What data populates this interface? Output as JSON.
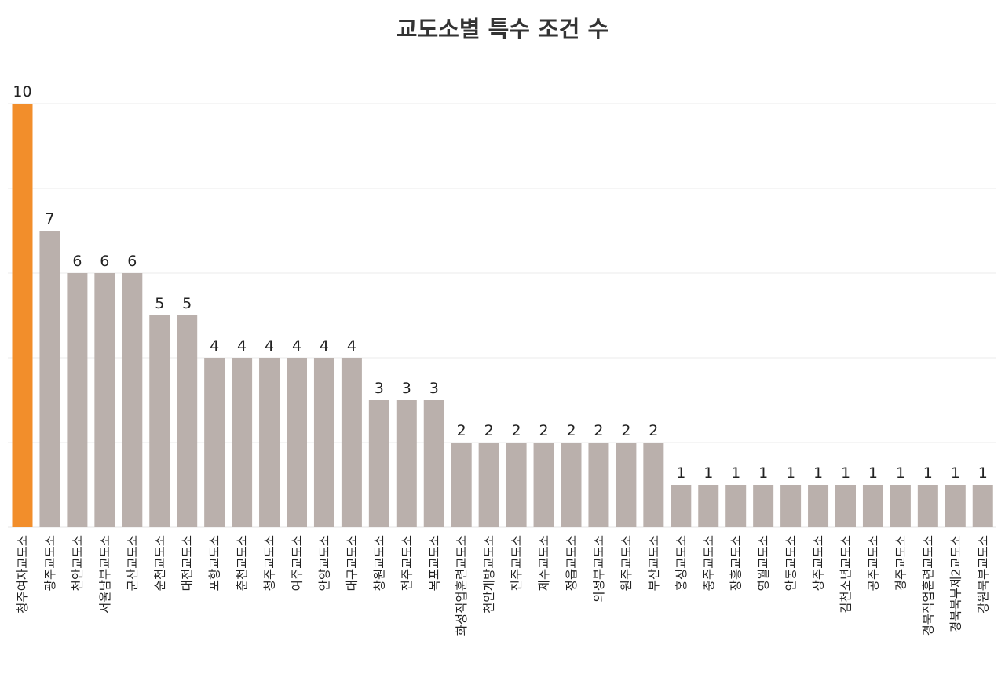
{
  "chart_data": {
    "type": "bar",
    "title": "교도소별 특수 조건 수",
    "xlabel": "",
    "ylabel": "",
    "ylim": [
      0,
      10
    ],
    "grid": true,
    "highlight_color": "#F28E2B",
    "bar_color": "#BAB0AC",
    "grid_color": "#EBEBEB",
    "categories": [
      "청주여자교도소",
      "광주교도소",
      "천안교도소",
      "서울남부교도소",
      "군산교도소",
      "순천교도소",
      "대전교도소",
      "포항교도소",
      "춘천교도소",
      "청주교도소",
      "여주교도소",
      "안양교도소",
      "대구교도소",
      "창원교도소",
      "전주교도소",
      "목포교도소",
      "화성직업훈련교도소",
      "천안개방교도소",
      "진주교도소",
      "제주교도소",
      "정읍교도소",
      "의정부교도소",
      "원주교도소",
      "부산교도소",
      "홍성교도소",
      "충주교도소",
      "장흥교도소",
      "영월교도소",
      "안동교도소",
      "상주교도소",
      "김천소년교도소",
      "공주교도소",
      "경주교도소",
      "경북직업훈련교도소",
      "경북북부제2교도소",
      "강원북부교도소"
    ],
    "values": [
      10,
      7,
      6,
      6,
      6,
      5,
      5,
      4,
      4,
      4,
      4,
      4,
      4,
      3,
      3,
      3,
      2,
      2,
      2,
      2,
      2,
      2,
      2,
      2,
      1,
      1,
      1,
      1,
      1,
      1,
      1,
      1,
      1,
      1,
      1,
      1
    ],
    "highlight_index": 0
  }
}
